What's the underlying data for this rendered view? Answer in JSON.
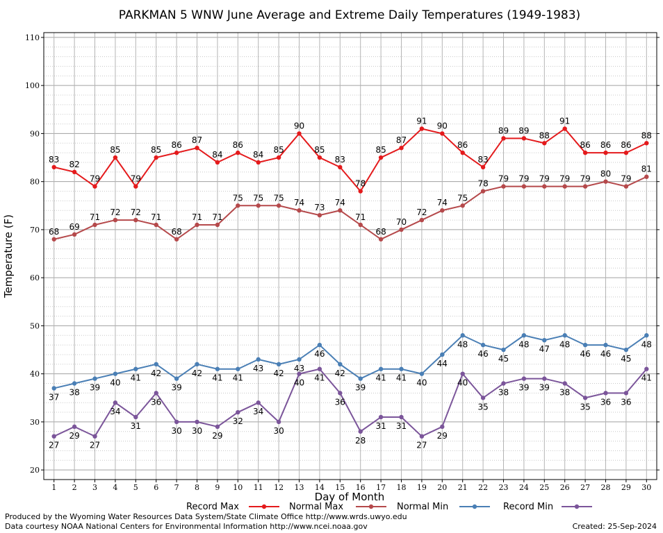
{
  "chart_data": {
    "type": "line",
    "title": "PARKMAN 5 WNW June Average and Extreme Daily Temperatures (1949-1983)",
    "xlabel": "Day of Month",
    "ylabel": "Temperature (F)",
    "xlim": [
      0.5,
      30.5
    ],
    "ylim": [
      18,
      111
    ],
    "yticks": [
      20,
      30,
      40,
      50,
      60,
      70,
      80,
      90,
      100,
      110
    ],
    "x": [
      1,
      2,
      3,
      4,
      5,
      6,
      7,
      8,
      9,
      10,
      11,
      12,
      13,
      14,
      15,
      16,
      17,
      18,
      19,
      20,
      21,
      22,
      23,
      24,
      25,
      26,
      27,
      28,
      29,
      30
    ],
    "grid": true,
    "legend_position": "bottom",
    "series": [
      {
        "name": "Record Max",
        "color": "#e41a1c",
        "label_pos": "above",
        "values": [
          83,
          82,
          79,
          85,
          79,
          85,
          86,
          87,
          84,
          86,
          84,
          85,
          90,
          85,
          83,
          78,
          85,
          87,
          91,
          90,
          86,
          83,
          89,
          89,
          88,
          91,
          86,
          86,
          86,
          88
        ]
      },
      {
        "name": "Normal Max",
        "color": "#b5494b",
        "label_pos": "above",
        "values": [
          68,
          69,
          71,
          72,
          72,
          71,
          68,
          71,
          71,
          75,
          75,
          75,
          74,
          73,
          74,
          71,
          68,
          70,
          72,
          74,
          75,
          78,
          79,
          79,
          79,
          79,
          79,
          80,
          79,
          81
        ]
      },
      {
        "name": "Normal Min",
        "color": "#4a7fb5",
        "label_pos": "below",
        "values": [
          37,
          38,
          39,
          40,
          41,
          42,
          39,
          42,
          41,
          41,
          43,
          42,
          43,
          46,
          42,
          39,
          41,
          41,
          40,
          44,
          48,
          46,
          45,
          48,
          47,
          48,
          46,
          46,
          45,
          48
        ]
      },
      {
        "name": "Record Min",
        "color": "#7b559a",
        "label_pos": "below",
        "values": [
          27,
          29,
          27,
          34,
          31,
          36,
          30,
          30,
          29,
          32,
          34,
          30,
          40,
          41,
          36,
          28,
          31,
          31,
          27,
          29,
          40,
          35,
          38,
          39,
          39,
          38,
          35,
          36,
          36,
          41
        ]
      }
    ]
  },
  "footer": {
    "left_line1": "Produced by the Wyoming Water Resources Data System/State Climate Office http://www.wrds.uwyo.edu",
    "left_line2": "Data courtesy NOAA National Centers for Environmental Information http://www.ncei.noaa.gov",
    "created": "Created:  25-Sep-2024"
  }
}
